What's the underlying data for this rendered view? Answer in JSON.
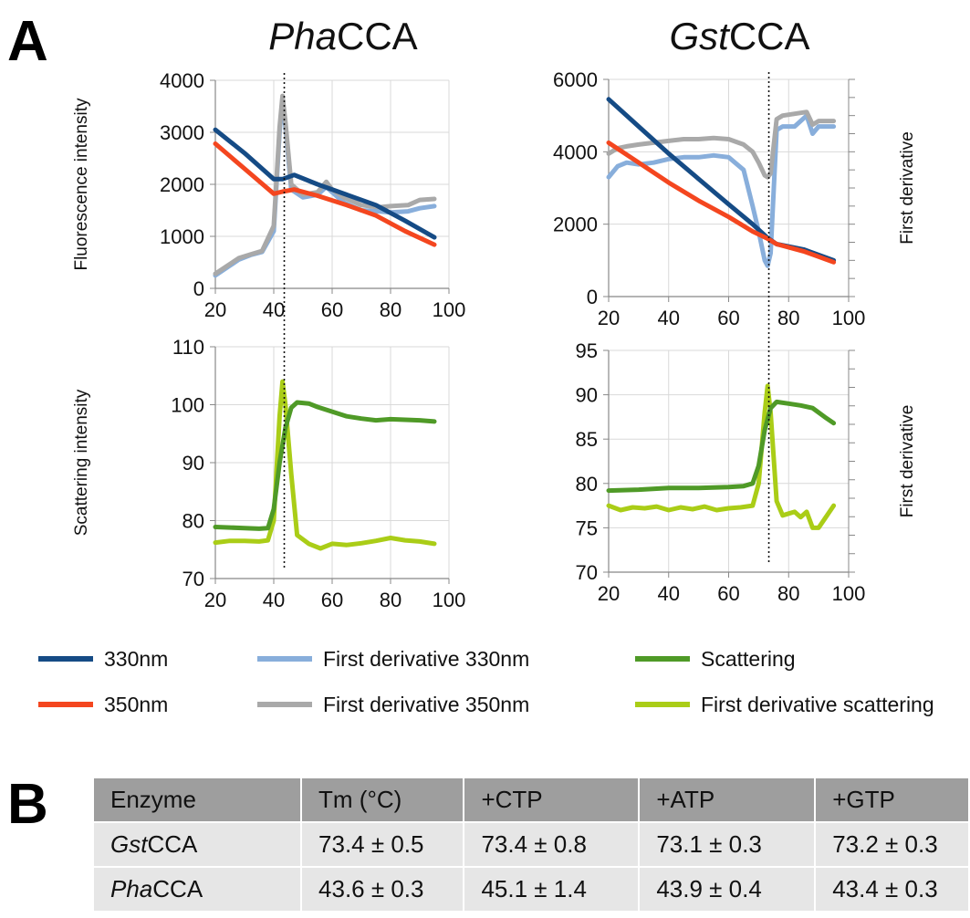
{
  "panel_labels": {
    "a": "A",
    "b": "B"
  },
  "colors": {
    "c330": "#154b85",
    "c350": "#f4461f",
    "d330": "#88aedb",
    "d350": "#a9a9a9",
    "scatter": "#4f9a27",
    "dscatter": "#aacd17",
    "grid": "#d9d9d9",
    "axis": "#888888"
  },
  "chart_data": [
    {
      "id": "pha-fluor",
      "type": "line",
      "title_italic": "Pha",
      "title_rest": "CCA",
      "ylabel": "Fluorescence intensity",
      "ylabel2": "",
      "xlim": [
        20,
        100
      ],
      "ylim": [
        0,
        4000
      ],
      "xticks": [
        20,
        40,
        60,
        80,
        100
      ],
      "yticks": [
        0,
        1000,
        2000,
        3000,
        4000
      ],
      "tm": 43.6,
      "series": [
        {
          "key": "d330",
          "x": [
            20,
            24,
            28,
            32,
            36,
            40,
            42,
            43,
            44,
            46,
            50,
            55,
            58,
            60,
            64,
            70,
            76,
            80,
            86,
            90,
            95
          ],
          "y": [
            250,
            400,
            550,
            640,
            700,
            1100,
            3000,
            3650,
            3100,
            1900,
            1750,
            1800,
            1950,
            1850,
            1650,
            1500,
            1480,
            1460,
            1480,
            1540,
            1580
          ]
        },
        {
          "key": "d350",
          "x": [
            20,
            24,
            28,
            32,
            36,
            40,
            42,
            43,
            44,
            46,
            50,
            55,
            58,
            60,
            64,
            70,
            76,
            80,
            86,
            90,
            95
          ],
          "y": [
            280,
            430,
            580,
            650,
            720,
            1200,
            3100,
            3700,
            3200,
            2000,
            1800,
            1850,
            2050,
            1900,
            1750,
            1600,
            1560,
            1580,
            1600,
            1700,
            1720
          ]
        },
        {
          "key": "c330",
          "x": [
            20,
            30,
            40,
            43,
            47,
            55,
            65,
            75,
            85,
            95
          ],
          "y": [
            3050,
            2600,
            2100,
            2100,
            2180,
            2000,
            1800,
            1600,
            1300,
            980
          ]
        },
        {
          "key": "c350",
          "x": [
            20,
            30,
            40,
            43,
            47,
            55,
            65,
            75,
            85,
            95
          ],
          "y": [
            2780,
            2300,
            1820,
            1860,
            1900,
            1780,
            1600,
            1400,
            1100,
            840
          ]
        }
      ]
    },
    {
      "id": "gst-fluor",
      "type": "line",
      "title_italic": "Gst",
      "title_rest": "CCA",
      "ylabel": "",
      "ylabel2": "First derivative",
      "xlim": [
        20,
        100
      ],
      "ylim": [
        0,
        6000
      ],
      "xticks": [
        20,
        40,
        60,
        80,
        100
      ],
      "yticks": [
        0,
        2000,
        4000,
        6000
      ],
      "tm": 73.4,
      "series": [
        {
          "key": "d330",
          "x": [
            20,
            23,
            26,
            30,
            35,
            40,
            45,
            50,
            55,
            60,
            65,
            68,
            70,
            72,
            73,
            74,
            76,
            78,
            82,
            86,
            88,
            90,
            92,
            95
          ],
          "y": [
            3300,
            3600,
            3700,
            3650,
            3700,
            3800,
            3850,
            3850,
            3900,
            3850,
            3500,
            2500,
            1800,
            1000,
            850,
            1200,
            4600,
            4700,
            4700,
            5000,
            4500,
            4700,
            4700,
            4700
          ]
        },
        {
          "key": "d350",
          "x": [
            20,
            23,
            26,
            30,
            35,
            40,
            45,
            50,
            55,
            60,
            65,
            68,
            70,
            72,
            73,
            74,
            76,
            78,
            82,
            86,
            88,
            90,
            92,
            95
          ],
          "y": [
            3950,
            4100,
            4150,
            4200,
            4250,
            4300,
            4350,
            4350,
            4380,
            4350,
            4200,
            4000,
            3700,
            3350,
            3300,
            3400,
            4900,
            5000,
            5050,
            5100,
            4750,
            4850,
            4850,
            4850
          ]
        },
        {
          "key": "c330",
          "x": [
            20,
            30,
            40,
            50,
            60,
            68,
            73,
            76,
            85,
            95
          ],
          "y": [
            5450,
            4700,
            3950,
            3250,
            2550,
            2000,
            1620,
            1450,
            1300,
            1000
          ]
        },
        {
          "key": "c350",
          "x": [
            20,
            30,
            40,
            50,
            60,
            68,
            73,
            76,
            85,
            95
          ],
          "y": [
            4250,
            3700,
            3150,
            2650,
            2200,
            1800,
            1600,
            1450,
            1250,
            950
          ]
        }
      ]
    },
    {
      "id": "pha-scatter",
      "type": "line",
      "title_italic": "",
      "title_rest": "",
      "ylabel": "Scattering intensity",
      "ylabel2": "",
      "xlim": [
        20,
        100
      ],
      "ylim": [
        70,
        110
      ],
      "xticks": [
        20,
        40,
        60,
        80,
        100
      ],
      "yticks": [
        70,
        80,
        90,
        100,
        110
      ],
      "tm": 43.6,
      "series": [
        {
          "key": "dscatter",
          "x": [
            20,
            25,
            30,
            35,
            38,
            40,
            42,
            43,
            44,
            46,
            48,
            52,
            56,
            60,
            65,
            70,
            75,
            80,
            85,
            90,
            95
          ],
          "y": [
            76.2,
            76.5,
            76.5,
            76.4,
            76.6,
            80,
            98,
            104,
            100,
            88,
            77.5,
            76,
            75.2,
            76,
            75.8,
            76.1,
            76.5,
            77,
            76.6,
            76.4,
            76
          ]
        },
        {
          "key": "scatter",
          "x": [
            20,
            25,
            30,
            35,
            38,
            40,
            42,
            44,
            46,
            48,
            52,
            55,
            60,
            65,
            70,
            75,
            80,
            85,
            90,
            95
          ],
          "y": [
            78.9,
            78.8,
            78.7,
            78.6,
            78.7,
            82,
            90,
            96,
            99.5,
            100.4,
            100.2,
            99.6,
            98.8,
            98,
            97.6,
            97.3,
            97.5,
            97.4,
            97.3,
            97.1
          ]
        }
      ]
    },
    {
      "id": "gst-scatter",
      "type": "line",
      "title_italic": "",
      "title_rest": "",
      "ylabel": "",
      "ylabel2": "First derivative",
      "xlim": [
        20,
        100
      ],
      "ylim": [
        70,
        95
      ],
      "xticks": [
        20,
        40,
        60,
        80,
        100
      ],
      "yticks": [
        70,
        75,
        80,
        85,
        90,
        95
      ],
      "tm": 73.4,
      "series": [
        {
          "key": "dscatter",
          "x": [
            20,
            24,
            28,
            32,
            36,
            40,
            44,
            48,
            52,
            56,
            60,
            64,
            68,
            70,
            72,
            73,
            74,
            76,
            78,
            80,
            82,
            84,
            86,
            88,
            90,
            92,
            95
          ],
          "y": [
            77.5,
            77,
            77.3,
            77.2,
            77.4,
            77,
            77.3,
            77.1,
            77.4,
            77,
            77.2,
            77.3,
            77.5,
            80,
            88,
            91,
            88,
            78,
            76.4,
            76.6,
            76.8,
            76.2,
            76.8,
            75,
            75,
            76,
            77.5
          ]
        },
        {
          "key": "scatter",
          "x": [
            20,
            30,
            40,
            50,
            60,
            65,
            68,
            70,
            72,
            74,
            76,
            80,
            84,
            88,
            92,
            95
          ],
          "y": [
            79.2,
            79.3,
            79.5,
            79.5,
            79.6,
            79.7,
            80,
            82,
            86,
            88.5,
            89.2,
            89,
            88.8,
            88.5,
            87.5,
            86.8
          ]
        }
      ]
    }
  ],
  "legend": [
    {
      "key": "c330",
      "label": "330nm"
    },
    {
      "key": "c350",
      "label": "350nm"
    },
    {
      "key": "d330",
      "label": "First derivative 330nm"
    },
    {
      "key": "d350",
      "label": "First derivative 350nm"
    },
    {
      "key": "scatter",
      "label": "Scattering"
    },
    {
      "key": "dscatter",
      "label": "First derivative scattering"
    }
  ],
  "table": {
    "headers": [
      "Enzyme",
      "Tm (°C)",
      "+CTP",
      "+ATP",
      "+GTP"
    ],
    "rows": [
      {
        "enzyme_italic": "Gst",
        "enzyme_rest": "CCA",
        "cells": [
          "73.4 ± 0.5",
          "73.4 ± 0.8",
          "73.1 ± 0.3",
          "73.2 ± 0.3"
        ]
      },
      {
        "enzyme_italic": "Pha",
        "enzyme_rest": "CCA",
        "cells": [
          "43.6 ± 0.3",
          "45.1 ± 1.4",
          "43.9 ± 0.4",
          "43.4 ± 0.3"
        ]
      }
    ]
  }
}
